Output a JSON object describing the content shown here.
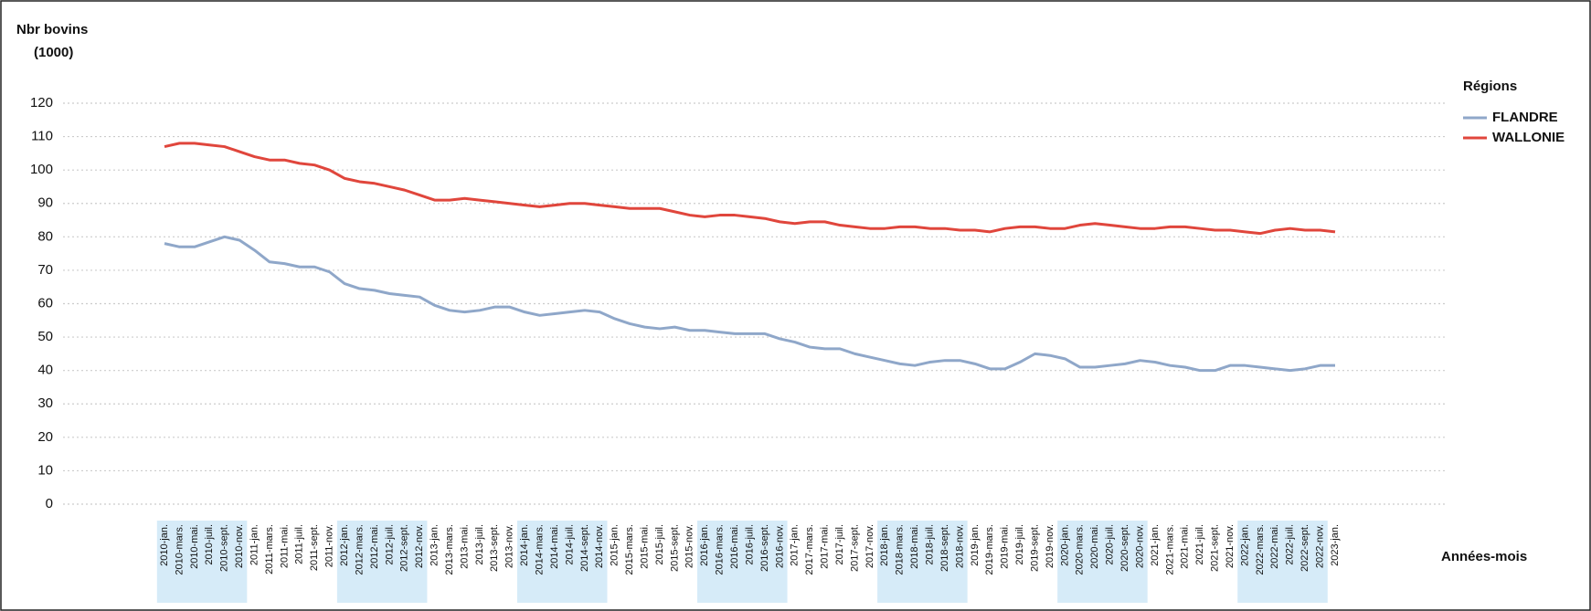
{
  "chart_data": {
    "type": "line",
    "ylabel": [
      "Nbr bovins",
      "(1000)"
    ],
    "xlabel": "Années-mois",
    "legend_title": "Régions",
    "legend": "right",
    "grid": true,
    "ylim": [
      0,
      120
    ],
    "yticks": [
      0,
      10,
      20,
      30,
      40,
      50,
      60,
      70,
      80,
      90,
      100,
      110,
      120
    ],
    "categories": [
      "2010-jan.",
      "2010-mars.",
      "2010-mai.",
      "2010-juil.",
      "2010-sept.",
      "2010-nov.",
      "2011-jan.",
      "2011-mars.",
      "2011-mai.",
      "2011-juil.",
      "2011-sept.",
      "2011-nov.",
      "2012-jan.",
      "2012-mars.",
      "2012-mai.",
      "2012-juil.",
      "2012-sept.",
      "2012-nov.",
      "2013-jan.",
      "2013-mars.",
      "2013-mai.",
      "2013-juil.",
      "2013-sept.",
      "2013-nov.",
      "2014-jan.",
      "2014-mars.",
      "2014-mai.",
      "2014-juil.",
      "2014-sept.",
      "2014-nov.",
      "2015-jan.",
      "2015-mars.",
      "2015-mai.",
      "2015-juil.",
      "2015-sept.",
      "2015-nov.",
      "2016-jan.",
      "2016-mars.",
      "2016-mai.",
      "2016-juil.",
      "2016-sept.",
      "2016-nov.",
      "2017-jan.",
      "2017-mars.",
      "2017-mai.",
      "2017-juil.",
      "2017-sept.",
      "2017-nov.",
      "2018-jan.",
      "2018-mars.",
      "2018-mai.",
      "2018-juil.",
      "2018-sept.",
      "2018-nov.",
      "2019-jan.",
      "2019-mars.",
      "2019-mai.",
      "2019-juil.",
      "2019-sept.",
      "2019-nov.",
      "2020-jan.",
      "2020-mars.",
      "2020-mai.",
      "2020-juil.",
      "2020-sept.",
      "2020-nov.",
      "2021-jan.",
      "2021-mars.",
      "2021-mai.",
      "2021-juil.",
      "2021-sept.",
      "2021-nov.",
      "2022-jan.",
      "2022-mars.",
      "2022-mai.",
      "2022-juil.",
      "2022-sept.",
      "2022-nov.",
      "2023-jan."
    ],
    "series": [
      {
        "name": "FLANDRE",
        "color": "#8fa7c9",
        "values": [
          78,
          77,
          77,
          78.5,
          80,
          79,
          76,
          72.5,
          72,
          71,
          71,
          69.5,
          66,
          64.5,
          64,
          63,
          62.5,
          62,
          59.5,
          58,
          57.5,
          58,
          59,
          59,
          57.5,
          56.5,
          57,
          57.5,
          58,
          57.5,
          55.5,
          54,
          53,
          52.5,
          53,
          52,
          52,
          51.5,
          51,
          51,
          51,
          49.5,
          48.5,
          47,
          46.5,
          46.5,
          45,
          44,
          43,
          42,
          41.5,
          42.5,
          43,
          43,
          42,
          40.5,
          40.5,
          42.5,
          45,
          44.5,
          43.5,
          41,
          41,
          41.5,
          42,
          43,
          42.5,
          41.5,
          41,
          40,
          40,
          41.5,
          41.5,
          41,
          40.5,
          40,
          40.5,
          41.5,
          41.5
        ]
      },
      {
        "name": "WALLONIE",
        "color": "#e0463c",
        "values": [
          107,
          108,
          108,
          107.5,
          107,
          105.5,
          104,
          103,
          103,
          102,
          101.5,
          100,
          97.5,
          96.5,
          96,
          95,
          94,
          92.5,
          91,
          91,
          91.5,
          91,
          90.5,
          90,
          89.5,
          89,
          89.5,
          90,
          90,
          89.5,
          89,
          88.5,
          88.5,
          88.5,
          87.5,
          86.5,
          86,
          86.5,
          86.5,
          86,
          85.5,
          84.5,
          84,
          84.5,
          84.5,
          83.5,
          83,
          82.5,
          82.5,
          83,
          83,
          82.5,
          82.5,
          82,
          82,
          81.5,
          82.5,
          83,
          83,
          82.5,
          82.5,
          83.5,
          84,
          83.5,
          83,
          82.5,
          82.5,
          83,
          83,
          82.5,
          82,
          82,
          81.5,
          81,
          82,
          82.5,
          82,
          82,
          81.5
        ]
      }
    ]
  }
}
